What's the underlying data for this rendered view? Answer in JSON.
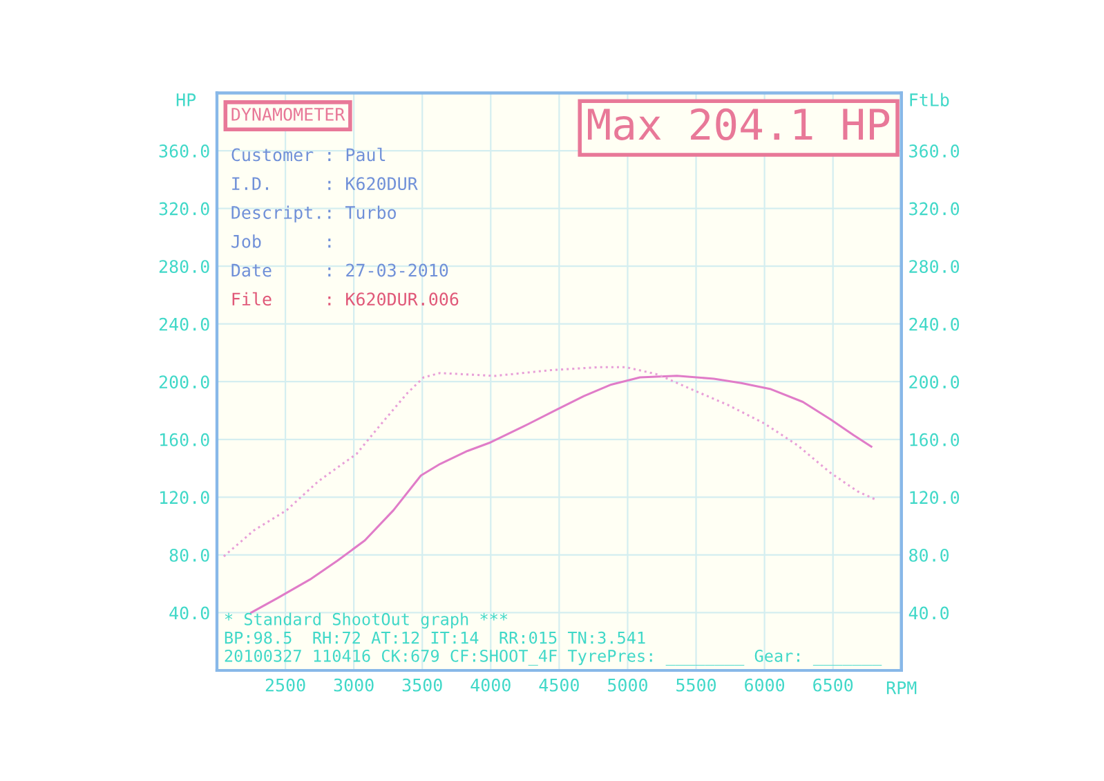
{
  "chart_data": {
    "type": "line",
    "title": "Max 204.1 HP",
    "xlabel": "RPM",
    "ylabel": "HP",
    "y2label": "FtLb",
    "annotations": [
      "DYNAMOMETER",
      "Customer : Paul",
      "I.D.     : K620DUR",
      "Descript.: Turbo",
      "Job      :",
      "Date     : 27-03-2010",
      "File     : K620DUR.006",
      "* Standard ShootOut graph ***",
      "BP:98.5  RH:72 AT:12 IT:14  RR:015 TN:3.541",
      "20100327 110416 CK:679 CF:SHOOT_4F TyrePres: ________ Gear: _______"
    ],
    "xlim": [
      2000,
      7000
    ],
    "xticks": [
      2500,
      3000,
      3500,
      4000,
      4500,
      5000,
      5500,
      6000,
      6500
    ],
    "ylim": [
      0,
      400
    ],
    "yticks": [
      {
        "value": 40,
        "label": "40.0"
      },
      {
        "value": 80,
        "label": "80.0"
      },
      {
        "value": 120,
        "label": "120.0"
      },
      {
        "value": 160,
        "label": "160.0"
      },
      {
        "value": 200,
        "label": "200.0"
      },
      {
        "value": 240,
        "label": "240.0"
      },
      {
        "value": 280,
        "label": "280.0"
      },
      {
        "value": 320,
        "label": "320.0"
      },
      {
        "value": 360,
        "label": "360.0"
      }
    ],
    "y2lim": [
      0,
      400
    ],
    "y2ticks": [
      {
        "value": 40,
        "label": "40.0"
      },
      {
        "value": 80,
        "label": "80.0"
      },
      {
        "value": 120,
        "label": "120.0"
      },
      {
        "value": 160,
        "label": "160.0"
      },
      {
        "value": 200,
        "label": "200.0"
      },
      {
        "value": 240,
        "label": "240.0"
      },
      {
        "value": 280,
        "label": "280.0"
      },
      {
        "value": 320,
        "label": "320.0"
      },
      {
        "value": 360,
        "label": "360.0"
      }
    ],
    "grid": true,
    "legend": false,
    "series": [
      {
        "color": "#e07cc8",
        "line_style": "solid",
        "x": [
          2250,
          2440,
          2680,
          2880,
          3080,
          3290,
          3490,
          3630,
          3830,
          4000,
          4240,
          4490,
          4680,
          4880,
          5090,
          5360,
          5630,
          5830,
          6040,
          6280,
          6480,
          6650,
          6780
        ],
        "values": [
          40,
          50,
          63,
          76,
          90,
          111,
          135,
          143,
          152,
          158,
          169,
          181,
          190,
          198,
          203,
          204.1,
          202,
          199,
          195,
          186,
          174,
          163,
          155
        ]
      },
      {
        "color": "#e8a0d8",
        "line_style": "dotted",
        "x": [
          2050,
          2270,
          2510,
          2740,
          3020,
          3220,
          3390,
          3510,
          3630,
          4030,
          4440,
          4780,
          4990,
          5220,
          5460,
          5730,
          6000,
          6240,
          6480,
          6680,
          6820
        ],
        "values": [
          79,
          97,
          111,
          131,
          150,
          173,
          192,
          203,
          206,
          204,
          208,
          210,
          210,
          205,
          195,
          184,
          171,
          156,
          137,
          124,
          118
        ]
      }
    ]
  }
}
